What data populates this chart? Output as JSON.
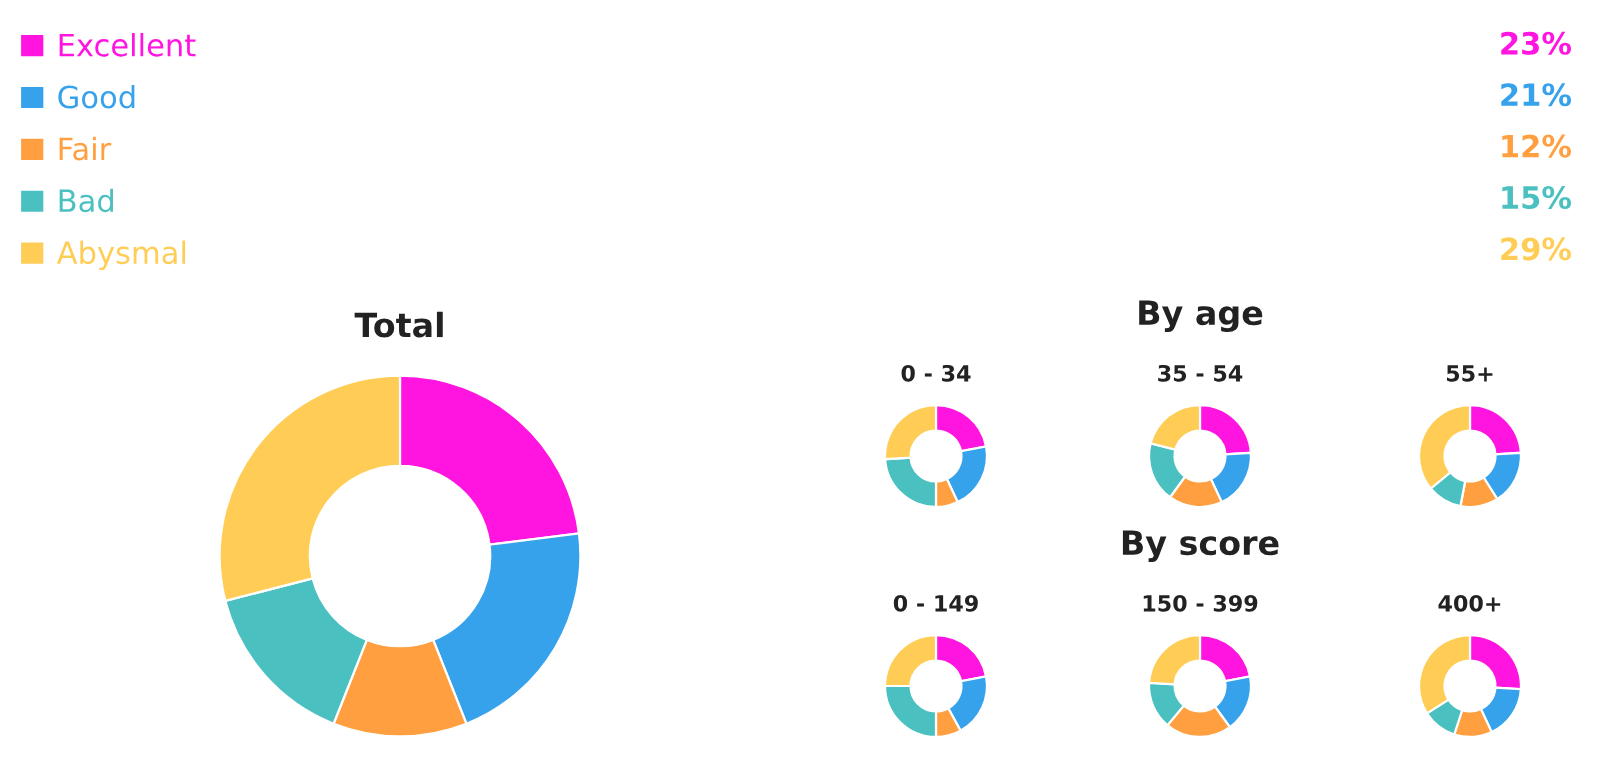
{
  "chart_data": [
    {
      "type": "donut",
      "title": "Total",
      "categories": [
        "Excellent",
        "Good",
        "Fair",
        "Bad",
        "Abysmal"
      ],
      "values": [
        23,
        21,
        12,
        15,
        29
      ],
      "value_labels": [
        "23%",
        "21%",
        "12%",
        "15%",
        "29%"
      ],
      "colors": [
        "#ff14e0",
        "#36a2eb",
        "#ff9f40",
        "#4bc0c0",
        "#ffcd56"
      ],
      "legend": "top"
    },
    {
      "type": "donut",
      "title": "0 - 34",
      "categories": [
        null,
        null,
        null,
        null,
        null
      ],
      "values": [
        22,
        21,
        7,
        24,
        26
      ],
      "colors": [
        "#ff14e0",
        "#36a2eb",
        "#ff9f40",
        "#4bc0c0",
        "#ffcd56"
      ]
    },
    {
      "type": "donut",
      "subtitle": "By age",
      "title": "35 - 54",
      "categories": [
        null,
        null,
        null,
        null,
        null
      ],
      "values": [
        24,
        19,
        17,
        19,
        21
      ],
      "colors": [
        "#ff14e0",
        "#36a2eb",
        "#ff9f40",
        "#4bc0c0",
        "#ffcd56"
      ]
    },
    {
      "type": "donut",
      "title": "55+",
      "categories": [
        null,
        null,
        null,
        null,
        null
      ],
      "values": [
        24,
        17,
        12,
        11,
        36
      ],
      "colors": [
        "#ff14e0",
        "#36a2eb",
        "#ff9f40",
        "#4bc0c0",
        "#ffcd56"
      ]
    },
    {
      "type": "donut",
      "title": "0 - 149",
      "categories": [
        null,
        null,
        null,
        null,
        null
      ],
      "values": [
        22,
        20,
        8,
        25,
        25
      ],
      "colors": [
        "#ff14e0",
        "#36a2eb",
        "#ff9f40",
        "#4bc0c0",
        "#ffcd56"
      ]
    },
    {
      "type": "donut",
      "subtitle": "By score",
      "title": "150 - 399",
      "categories": [
        null,
        null,
        null,
        null,
        null
      ],
      "values": [
        22,
        18,
        21,
        15,
        24
      ],
      "colors": [
        "#ff14e0",
        "#36a2eb",
        "#ff9f40",
        "#4bc0c0",
        "#ffcd56"
      ]
    },
    {
      "type": "donut",
      "title": "400+",
      "categories": [
        null,
        null,
        null,
        null,
        null
      ],
      "values": [
        26,
        17,
        12,
        11,
        34
      ],
      "colors": [
        "#ff14e0",
        "#36a2eb",
        "#ff9f40",
        "#4bc0c0",
        "#ffcd56"
      ]
    }
  ]
}
